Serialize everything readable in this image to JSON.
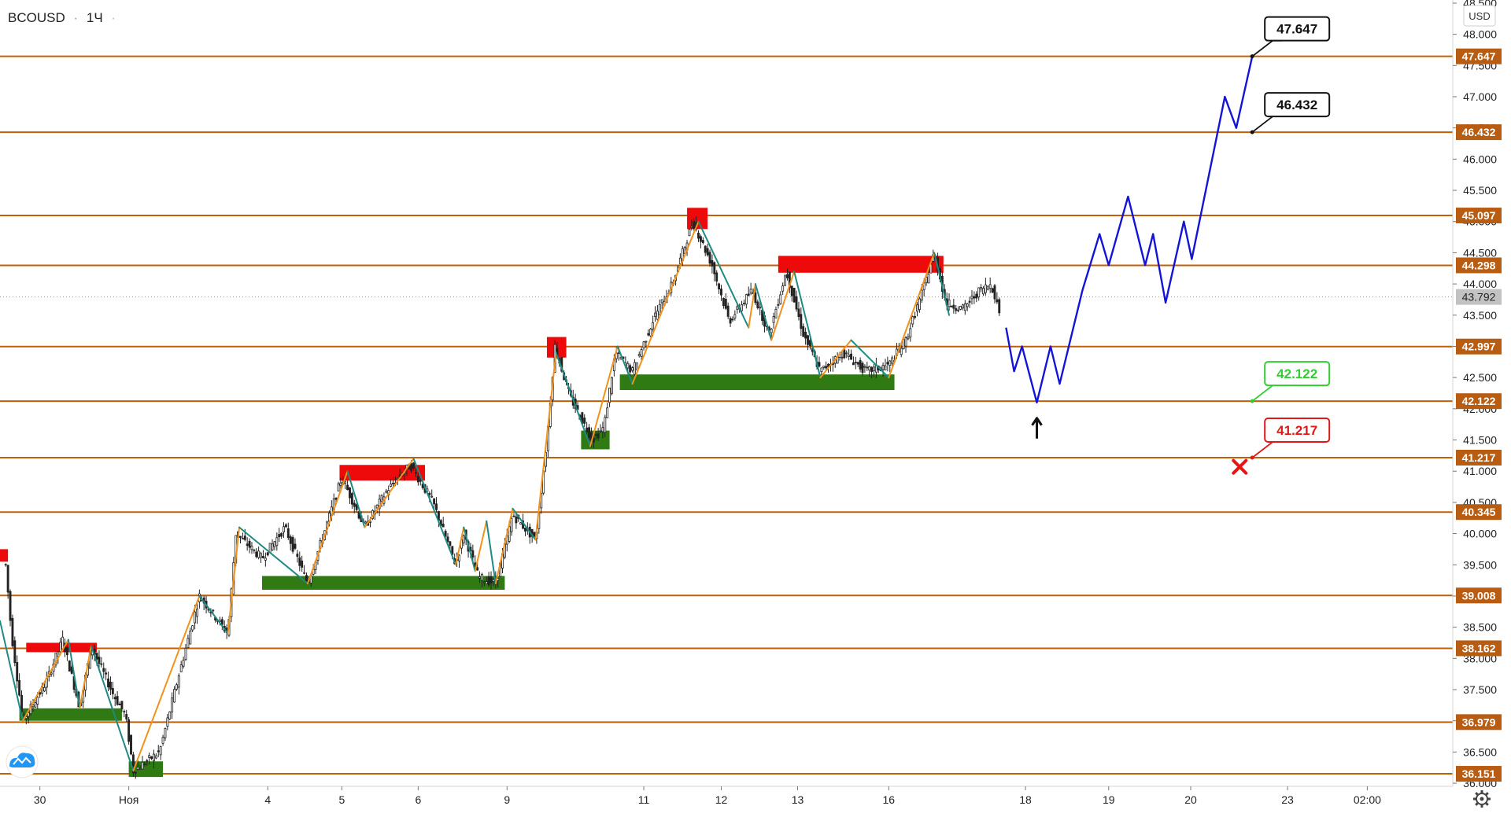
{
  "symbol": "BCOUSD",
  "timeframe": "1Ч",
  "separator": "·",
  "currency": "USD",
  "colors": {
    "level_line": "#c0600a",
    "level_label_bg": "#b85c12",
    "price_label_bg": "#c2c2c2",
    "resistance_box": "#ee0a0a",
    "support_box": "#2f7a12",
    "zigzag_up": "#f2921a",
    "zigzag_down": "#1f8a82",
    "forecast": "#1414d6",
    "candle": "#222222",
    "target_green": "#33cc33",
    "target_red": "#e01818"
  },
  "icons": {
    "logo": "tradingview-cloud-icon",
    "settings": "gear-icon",
    "buy_arrow": "arrow-up-icon",
    "stop": "cross-icon"
  },
  "chart_data": {
    "type": "candlestick",
    "title": "BCOUSD · 1Ч",
    "ylim": [
      35.95,
      48.55
    ],
    "y_ticks": [
      "36.000",
      "36.500",
      "37.000",
      "37.500",
      "38.000",
      "38.500",
      "39.000",
      "39.500",
      "40.000",
      "40.500",
      "41.000",
      "41.500",
      "42.000",
      "42.500",
      "43.000",
      "43.500",
      "44.000",
      "44.500",
      "45.000",
      "45.500",
      "46.000",
      "46.500",
      "47.000",
      "47.500",
      "48.000",
      "48.500"
    ],
    "x_ticks": [
      {
        "t": 3,
        "label": "30"
      },
      {
        "t": 10.8,
        "label": "Ноя"
      },
      {
        "t": 23,
        "label": "4"
      },
      {
        "t": 29.5,
        "label": "5"
      },
      {
        "t": 36.2,
        "label": "6"
      },
      {
        "t": 44,
        "label": "9"
      },
      {
        "t": 56,
        "label": "11"
      },
      {
        "t": 62.8,
        "label": "12"
      },
      {
        "t": 69.5,
        "label": "13"
      },
      {
        "t": 77.5,
        "label": "16"
      },
      {
        "t": 89.5,
        "label": "18"
      },
      {
        "t": 96.8,
        "label": "19"
      },
      {
        "t": 104,
        "label": "20"
      },
      {
        "t": 112.5,
        "label": "23"
      },
      {
        "t": 119.5,
        "label": "02:00"
      }
    ],
    "x_range": [
      -0.5,
      127
    ],
    "levels": [
      {
        "value": 47.647,
        "label": "47.647"
      },
      {
        "value": 46.432,
        "label": "46.432"
      },
      {
        "value": 45.097,
        "label": "45.097"
      },
      {
        "value": 44.298,
        "label": "44.298"
      },
      {
        "value": 42.997,
        "label": "42.997"
      },
      {
        "value": 42.122,
        "label": "42.122"
      },
      {
        "value": 41.217,
        "label": "41.217"
      },
      {
        "value": 40.345,
        "label": "40.345"
      },
      {
        "value": 39.008,
        "label": "39.008"
      },
      {
        "value": 38.162,
        "label": "38.162"
      },
      {
        "value": 36.979,
        "label": "36.979"
      },
      {
        "value": 36.151,
        "label": "36.151"
      }
    ],
    "current_price": {
      "value": 43.792,
      "label": "43.792"
    },
    "price_path": [
      [
        0,
        39.5
      ],
      [
        0.5,
        38.4
      ],
      [
        1.5,
        37.0
      ],
      [
        3.5,
        37.6
      ],
      [
        5,
        38.3
      ],
      [
        6.5,
        37.2
      ],
      [
        7.5,
        38.2
      ],
      [
        9.5,
        37.4
      ],
      [
        10.5,
        37.1
      ],
      [
        11.2,
        36.2
      ],
      [
        13.5,
        36.5
      ],
      [
        15,
        37.6
      ],
      [
        17,
        39.0
      ],
      [
        19.5,
        38.4
      ],
      [
        20.2,
        40.0
      ],
      [
        22.5,
        39.6
      ],
      [
        24.5,
        40.1
      ],
      [
        26.5,
        39.2
      ],
      [
        29.5,
        40.9
      ],
      [
        31.5,
        40.1
      ],
      [
        33.5,
        40.7
      ],
      [
        35.5,
        41.1
      ],
      [
        37.5,
        40.5
      ],
      [
        39.5,
        39.5
      ],
      [
        40.2,
        40.0
      ],
      [
        41.5,
        39.3
      ],
      [
        43,
        39.2
      ],
      [
        44.5,
        40.3
      ],
      [
        46.5,
        39.9
      ],
      [
        47.5,
        41.5
      ],
      [
        48.2,
        43.0
      ],
      [
        49.5,
        42.2
      ],
      [
        51.5,
        41.5
      ],
      [
        52.5,
        41.7
      ],
      [
        53.5,
        42.9
      ],
      [
        55,
        42.6
      ],
      [
        57,
        43.5
      ],
      [
        58.5,
        44.0
      ],
      [
        60.3,
        45.0
      ],
      [
        62,
        44.3
      ],
      [
        63.5,
        43.4
      ],
      [
        65.5,
        43.9
      ],
      [
        67,
        43.2
      ],
      [
        68.5,
        44.2
      ],
      [
        70,
        43.2
      ],
      [
        71.5,
        42.6
      ],
      [
        73.5,
        42.9
      ],
      [
        75.5,
        42.6
      ],
      [
        77.5,
        42.7
      ],
      [
        79,
        43.1
      ],
      [
        80.5,
        43.9
      ],
      [
        81.5,
        44.5
      ],
      [
        82.5,
        43.7
      ],
      [
        84,
        43.6
      ],
      [
        85.5,
        43.9
      ],
      [
        86.5,
        44.0
      ],
      [
        87.3,
        43.5
      ]
    ],
    "zigzag": [
      [
        -0.5,
        38.6
      ],
      [
        1.5,
        37.0
      ],
      [
        5.5,
        38.3
      ],
      [
        6.5,
        37.2
      ],
      [
        7.5,
        38.2
      ],
      [
        11.2,
        36.2
      ],
      [
        17,
        39.0
      ],
      [
        19.5,
        38.4
      ],
      [
        20.5,
        40.1
      ],
      [
        26.5,
        39.2
      ],
      [
        30,
        41.0
      ],
      [
        31.5,
        40.1
      ],
      [
        35.8,
        41.2
      ],
      [
        39.5,
        39.5
      ],
      [
        40.2,
        40.1
      ],
      [
        41.2,
        39.4
      ],
      [
        42.2,
        40.2
      ],
      [
        43,
        39.2
      ],
      [
        44.5,
        40.4
      ],
      [
        46.5,
        39.9
      ],
      [
        48.3,
        42.9
      ],
      [
        51.3,
        41.4
      ],
      [
        53.7,
        43.0
      ],
      [
        55,
        42.4
      ],
      [
        60.8,
        45.0
      ],
      [
        65.2,
        43.3
      ],
      [
        65.8,
        44.0
      ],
      [
        67.2,
        43.1
      ],
      [
        69.2,
        44.2
      ],
      [
        71.5,
        42.5
      ],
      [
        74.2,
        43.1
      ],
      [
        77.5,
        42.5
      ],
      [
        81.5,
        44.5
      ],
      [
        82.8,
        43.5
      ]
    ],
    "forecast_path": [
      [
        87.8,
        43.3
      ],
      [
        88.5,
        42.6
      ],
      [
        89.2,
        43.0
      ],
      [
        90.5,
        42.1
      ],
      [
        91.7,
        43.0
      ],
      [
        92.5,
        42.4
      ],
      [
        94.5,
        43.9
      ],
      [
        96,
        44.8
      ],
      [
        96.8,
        44.3
      ],
      [
        98.5,
        45.4
      ],
      [
        100,
        44.3
      ],
      [
        100.7,
        44.8
      ],
      [
        101.8,
        43.7
      ],
      [
        103.4,
        45.0
      ],
      [
        104.1,
        44.4
      ],
      [
        107,
        47.0
      ],
      [
        108,
        46.5
      ],
      [
        109.4,
        47.647
      ]
    ],
    "resistance_zones": [
      {
        "t0": -0.5,
        "t1": 0.2,
        "y0": 39.55,
        "y1": 39.75
      },
      {
        "t0": 1.8,
        "t1": 8,
        "y0": 38.1,
        "y1": 38.25
      },
      {
        "t0": 29.3,
        "t1": 36.8,
        "y0": 40.85,
        "y1": 41.1
      },
      {
        "t0": 47.5,
        "t1": 49.2,
        "y0": 42.82,
        "y1": 43.15
      },
      {
        "t0": 59.8,
        "t1": 61.6,
        "y0": 44.88,
        "y1": 45.22
      },
      {
        "t0": 67.8,
        "t1": 82.3,
        "y0": 44.18,
        "y1": 44.45
      }
    ],
    "support_zones": [
      {
        "t0": 1.2,
        "t1": 10.2,
        "y0": 37.0,
        "y1": 37.2
      },
      {
        "t0": 10.8,
        "t1": 13.8,
        "y0": 36.1,
        "y1": 36.35
      },
      {
        "t0": 22.5,
        "t1": 43.8,
        "y0": 39.1,
        "y1": 39.32
      },
      {
        "t0": 50.5,
        "t1": 53,
        "y0": 41.35,
        "y1": 41.65
      },
      {
        "t0": 53.9,
        "t1": 78,
        "y0": 42.3,
        "y1": 42.55
      }
    ],
    "callouts": [
      {
        "text": "47.647",
        "value": 47.647,
        "anchor_t": 109.4,
        "style": "black"
      },
      {
        "text": "46.432",
        "value": 46.432,
        "anchor_t": 109.4,
        "style": "black"
      },
      {
        "text": "42.122",
        "value": 42.122,
        "anchor_t": 109.4,
        "style": "green"
      },
      {
        "text": "41.217",
        "value": 41.217,
        "anchor_t": 109.4,
        "style": "red"
      }
    ],
    "buy_arrow": {
      "t": 90.5,
      "value": 41.85
    },
    "stop_marker": {
      "t": 108.3,
      "value": 41.07
    }
  }
}
